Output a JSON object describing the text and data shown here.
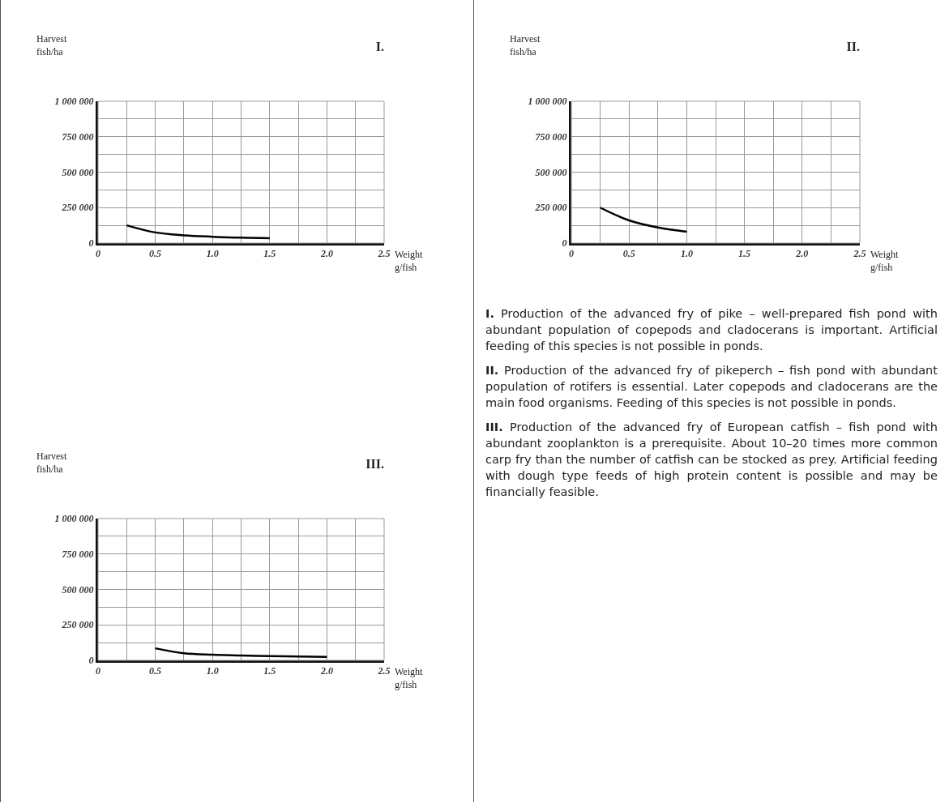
{
  "chart_data": [
    {
      "type": "line",
      "title": "I.",
      "ylabel": "Harvest\nfish/ha",
      "xlabel": "Weight\ng/fish",
      "x": [
        0.25,
        0.5,
        0.75,
        1.0,
        1.25,
        1.5
      ],
      "series": [
        {
          "color": "#000000",
          "values": [
            125000,
            75000,
            55000,
            45000,
            38000,
            35000
          ]
        }
      ],
      "xlim": [
        0,
        2.5
      ],
      "ylim": [
        0,
        1000000
      ],
      "xticks": [
        0,
        {
          "value": 0.25,
          "label": null
        },
        0.5,
        {
          "value": 0.75,
          "label": null
        },
        {
          "value": 1,
          "label": "1.0"
        },
        {
          "value": 1.25,
          "label": null
        },
        1.5,
        {
          "value": 1.75,
          "label": null
        },
        {
          "value": 2,
          "label": "2.0"
        },
        {
          "value": 2.25,
          "label": null
        },
        2.5
      ],
      "yticks": [
        {
          "value": 0,
          "label": "0"
        },
        {
          "value": 125000,
          "label": null
        },
        {
          "value": 250000,
          "label": "250 000"
        },
        {
          "value": 375000,
          "label": null
        },
        {
          "value": 500000,
          "label": "500 000"
        },
        {
          "value": 625000,
          "label": null
        },
        {
          "value": 750000,
          "label": "750 000"
        },
        {
          "value": 875000,
          "label": null
        },
        {
          "value": 1000000,
          "label": "1 000 000"
        }
      ],
      "grid": true,
      "marker": "none",
      "line_style": "solid"
    },
    {
      "type": "line",
      "title": "II.",
      "ylabel": "Harvest\nfish/ha",
      "xlabel": "Weight\ng/fish",
      "x": [
        0.25,
        0.5,
        0.75,
        1.0
      ],
      "series": [
        {
          "color": "#000000",
          "values": [
            250000,
            160000,
            110000,
            80000
          ]
        }
      ],
      "xlim": [
        0,
        2.5
      ],
      "ylim": [
        0,
        1000000
      ],
      "xticks": [
        0,
        {
          "value": 0.25,
          "label": null
        },
        0.5,
        {
          "value": 0.75,
          "label": null
        },
        {
          "value": 1,
          "label": "1.0"
        },
        {
          "value": 1.25,
          "label": null
        },
        1.5,
        {
          "value": 1.75,
          "label": null
        },
        {
          "value": 2,
          "label": "2.0"
        },
        {
          "value": 2.25,
          "label": null
        },
        2.5
      ],
      "yticks": [
        {
          "value": 0,
          "label": "0"
        },
        {
          "value": 125000,
          "label": null
        },
        {
          "value": 250000,
          "label": "250 000"
        },
        {
          "value": 375000,
          "label": null
        },
        {
          "value": 500000,
          "label": "500 000"
        },
        {
          "value": 625000,
          "label": null
        },
        {
          "value": 750000,
          "label": "750 000"
        },
        {
          "value": 875000,
          "label": null
        },
        {
          "value": 1000000,
          "label": "1 000 000"
        }
      ],
      "grid": true,
      "marker": "none",
      "line_style": "solid"
    },
    {
      "type": "line",
      "title": "III.",
      "ylabel": "Harvest\nfish/ha",
      "xlabel": "Weight\ng/fish",
      "x": [
        0.5,
        0.75,
        1.0,
        1.25,
        1.5,
        1.75,
        2.0
      ],
      "series": [
        {
          "color": "#000000",
          "values": [
            85000,
            50000,
            40000,
            35000,
            30000,
            27000,
            25000
          ]
        }
      ],
      "xlim": [
        0,
        2.5
      ],
      "ylim": [
        0,
        1000000
      ],
      "xticks": [
        0,
        {
          "value": 0.25,
          "label": null
        },
        0.5,
        {
          "value": 0.75,
          "label": null
        },
        {
          "value": 1,
          "label": "1.0"
        },
        {
          "value": 1.25,
          "label": null
        },
        1.5,
        {
          "value": 1.75,
          "label": null
        },
        {
          "value": 2,
          "label": "2.0"
        },
        {
          "value": 2.25,
          "label": null
        },
        2.5
      ],
      "yticks": [
        {
          "value": 0,
          "label": "0"
        },
        {
          "value": 125000,
          "label": null
        },
        {
          "value": 250000,
          "label": "250 000"
        },
        {
          "value": 375000,
          "label": null
        },
        {
          "value": 500000,
          "label": "500 000"
        },
        {
          "value": 625000,
          "label": null
        },
        {
          "value": 750000,
          "label": "750 000"
        },
        {
          "value": 875000,
          "label": null
        },
        {
          "value": 1000000,
          "label": "1 000 000"
        }
      ],
      "grid": true,
      "marker": "none",
      "line_style": "solid"
    },
    {
      "type": "other",
      "annotations": [
        "I. Production of the advanced fry of pike – well-prepared fish pond with abundant population of copepods and cladocerans is important. Artificial feeding of this species is not possible in ponds.",
        "II. Production of the advanced fry of pikeperch – fish pond with abundant population of rotifers is essential. Later copepods and cladocerans are the main food organisms. Feeding of this species is not possible in ponds.",
        "III. Production of the advanced fry of European catfish – fish pond with abundant zooplankton is a prerequisite. About 10–20 times more common carp fry than the number of catfish can be stocked as prey. Artificial feeding with dough type feeds of high protein content is possible and may be financially feasible."
      ]
    }
  ]
}
